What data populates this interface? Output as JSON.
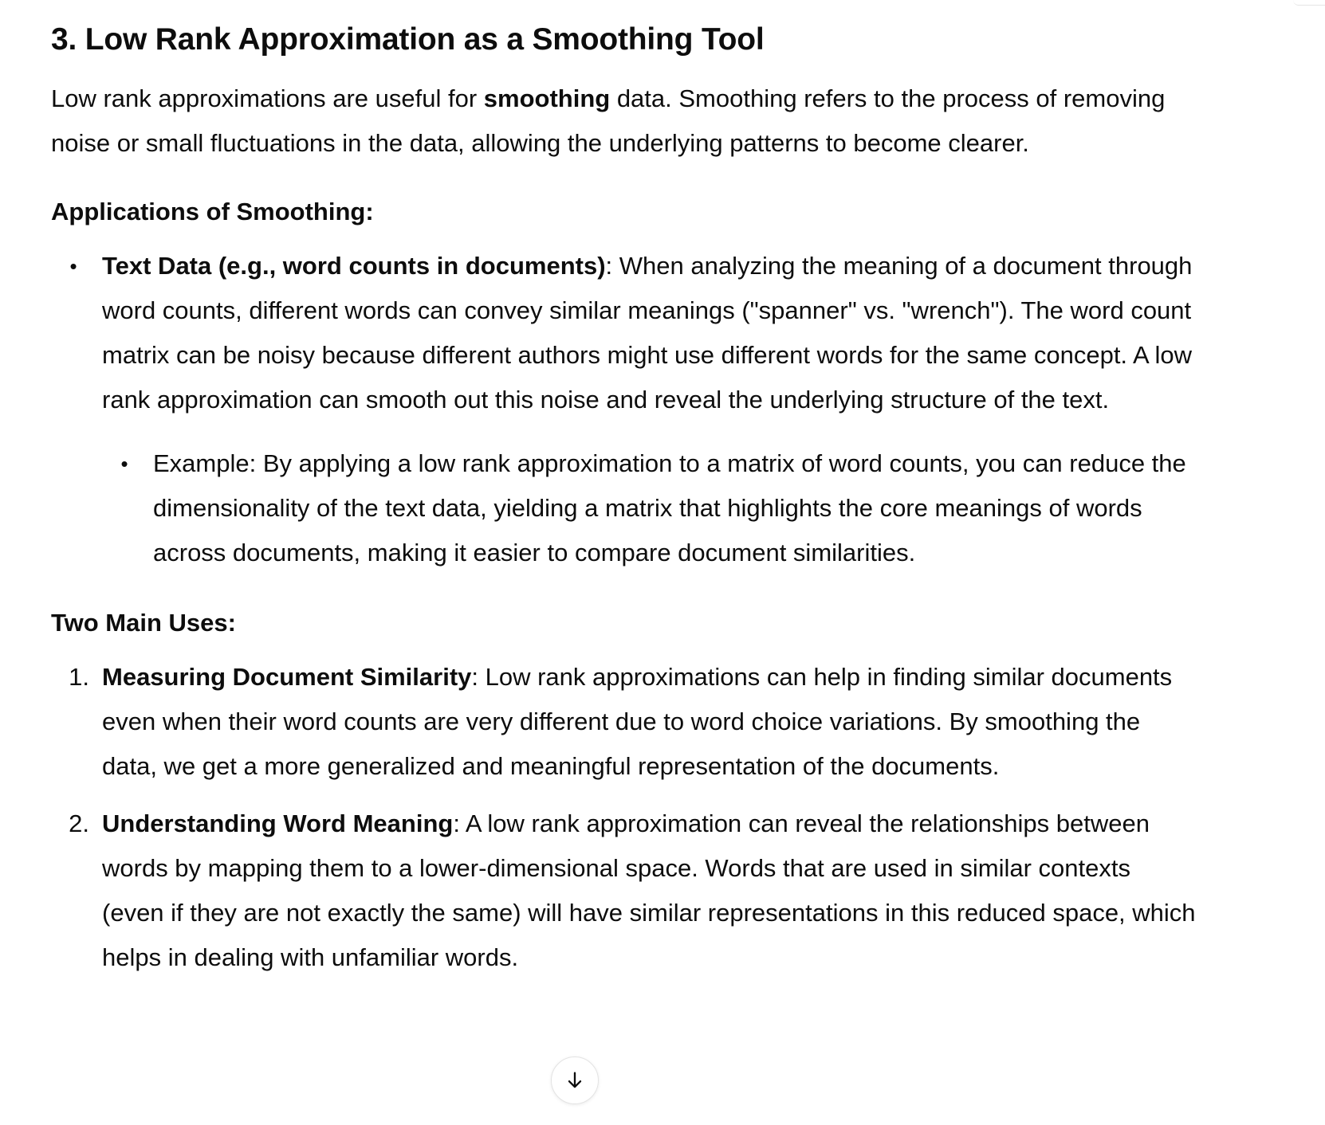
{
  "heading": "3. Low Rank Approximation as a Smoothing Tool",
  "intro": {
    "before": "Low rank approximations are useful for ",
    "bold": "smoothing",
    "after": " data. Smoothing refers to the process of removing noise or small fluctuations in the data, allowing the underlying patterns to become clearer."
  },
  "applications": {
    "heading": "Applications of Smoothing:",
    "items": [
      {
        "marker": "•",
        "bold": "Text Data (e.g., word counts in documents)",
        "text": ": When analyzing the meaning of a document through word counts, different words can convey similar meanings (\"spanner\" vs. \"wrench\"). The word count matrix can be noisy because different authors might use different words for the same concept. A low rank approximation can smooth out this noise and reveal the underlying structure of the text.",
        "sub": {
          "marker": "•",
          "text": "Example: By applying a low rank approximation to a matrix of word counts, you can reduce the dimensionality of the text data, yielding a matrix that highlights the core meanings of words across documents, making it easier to compare document similarities."
        }
      }
    ]
  },
  "uses": {
    "heading": "Two Main Uses:",
    "items": [
      {
        "marker": "1.",
        "bold": "Measuring Document Similarity",
        "text": ": Low rank approximations can help in finding similar documents even when their word counts are very different due to word choice variations. By smoothing the data, we get a more generalized and meaningful representation of the documents."
      },
      {
        "marker": "2.",
        "bold": "Understanding Word Meaning",
        "text": ": A low rank approximation can reveal the relationships between words by mapping them to a lower-dimensional space. Words that are used in similar contexts (even if they are not exactly the same) will have similar representations in this reduced space, which helps in dealing with unfamiliar words."
      }
    ]
  },
  "scroll_button": {
    "icon": "arrow-down-icon"
  }
}
